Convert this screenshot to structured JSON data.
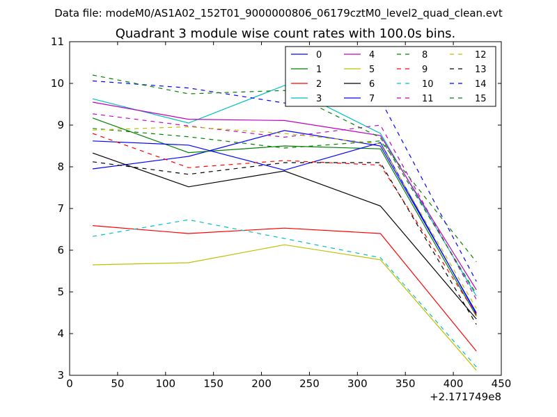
{
  "suptitle": "Data file: modeM0/AS1A02_152T01_9000000806_06179cztM0_level2_quad_clean.evt",
  "chart_data": {
    "type": "line",
    "title": "Quadrant 3 module wise count rates with 100.0s bins.",
    "xlabel": "",
    "ylabel": "",
    "xlim": [
      0,
      450
    ],
    "ylim": [
      3,
      11
    ],
    "x_ticks": [
      "0",
      "50",
      "100",
      "150",
      "200",
      "250",
      "300",
      "350",
      "400",
      "450"
    ],
    "y_ticks": [
      "3",
      "4",
      "5",
      "6",
      "7",
      "8",
      "9",
      "10",
      "11"
    ],
    "x_offset_label": "+2.171749e8",
    "grid": false,
    "legend_position": "top-right",
    "x": [
      24,
      124,
      224,
      324,
      424
    ],
    "series": [
      {
        "name": "0",
        "color": "#0000ff",
        "dash": "solid",
        "values": [
          7.95,
          8.25,
          8.87,
          8.5,
          4.5
        ]
      },
      {
        "name": "1",
        "color": "#008000",
        "dash": "solid",
        "values": [
          9.17,
          8.34,
          8.5,
          8.43,
          4.42
        ]
      },
      {
        "name": "2",
        "color": "#ff0000",
        "dash": "solid",
        "values": [
          6.59,
          6.4,
          6.53,
          6.4,
          3.58
        ]
      },
      {
        "name": "3",
        "color": "#00bfbf",
        "dash": "solid",
        "values": [
          9.63,
          9.05,
          9.95,
          8.8,
          4.9
        ]
      },
      {
        "name": "4",
        "color": "#bf00bf",
        "dash": "solid",
        "values": [
          9.55,
          9.14,
          9.11,
          8.75,
          5.05
        ]
      },
      {
        "name": "5",
        "color": "#bfbf00",
        "dash": "solid",
        "values": [
          5.65,
          5.7,
          6.13,
          5.77,
          3.12
        ]
      },
      {
        "name": "6",
        "color": "#000000",
        "dash": "solid",
        "values": [
          8.33,
          7.52,
          7.9,
          7.06,
          4.35
        ]
      },
      {
        "name": "7",
        "color": "#0000ff",
        "dash": "solid",
        "values": [
          8.62,
          8.52,
          7.92,
          8.58,
          4.47
        ]
      },
      {
        "name": "8",
        "color": "#008000",
        "dash": "dashed",
        "values": [
          8.92,
          8.72,
          8.45,
          8.62,
          5.72
        ]
      },
      {
        "name": "9",
        "color": "#ff0000",
        "dash": "dashed",
        "values": [
          8.8,
          7.98,
          8.15,
          8.04,
          4.45
        ]
      },
      {
        "name": "10",
        "color": "#00bfbf",
        "dash": "dashed",
        "values": [
          6.33,
          6.73,
          6.28,
          5.82,
          3.2
        ]
      },
      {
        "name": "11",
        "color": "#bf00bf",
        "dash": "dashed",
        "values": [
          9.27,
          8.98,
          8.71,
          9.0,
          4.82
        ]
      },
      {
        "name": "12",
        "color": "#bfbf00",
        "dash": "dashed",
        "values": [
          8.88,
          8.96,
          8.8,
          8.55,
          4.6
        ]
      },
      {
        "name": "13",
        "color": "#000000",
        "dash": "dashed",
        "values": [
          8.12,
          7.82,
          8.1,
          8.1,
          4.22
        ]
      },
      {
        "name": "14",
        "color": "#0000ff",
        "dash": "dashed",
        "values": [
          10.06,
          9.89,
          9.53,
          9.61,
          5.25
        ]
      },
      {
        "name": "15",
        "color": "#008000",
        "dash": "dashed",
        "values": [
          10.2,
          9.75,
          9.83,
          8.7,
          4.95
        ]
      }
    ]
  }
}
